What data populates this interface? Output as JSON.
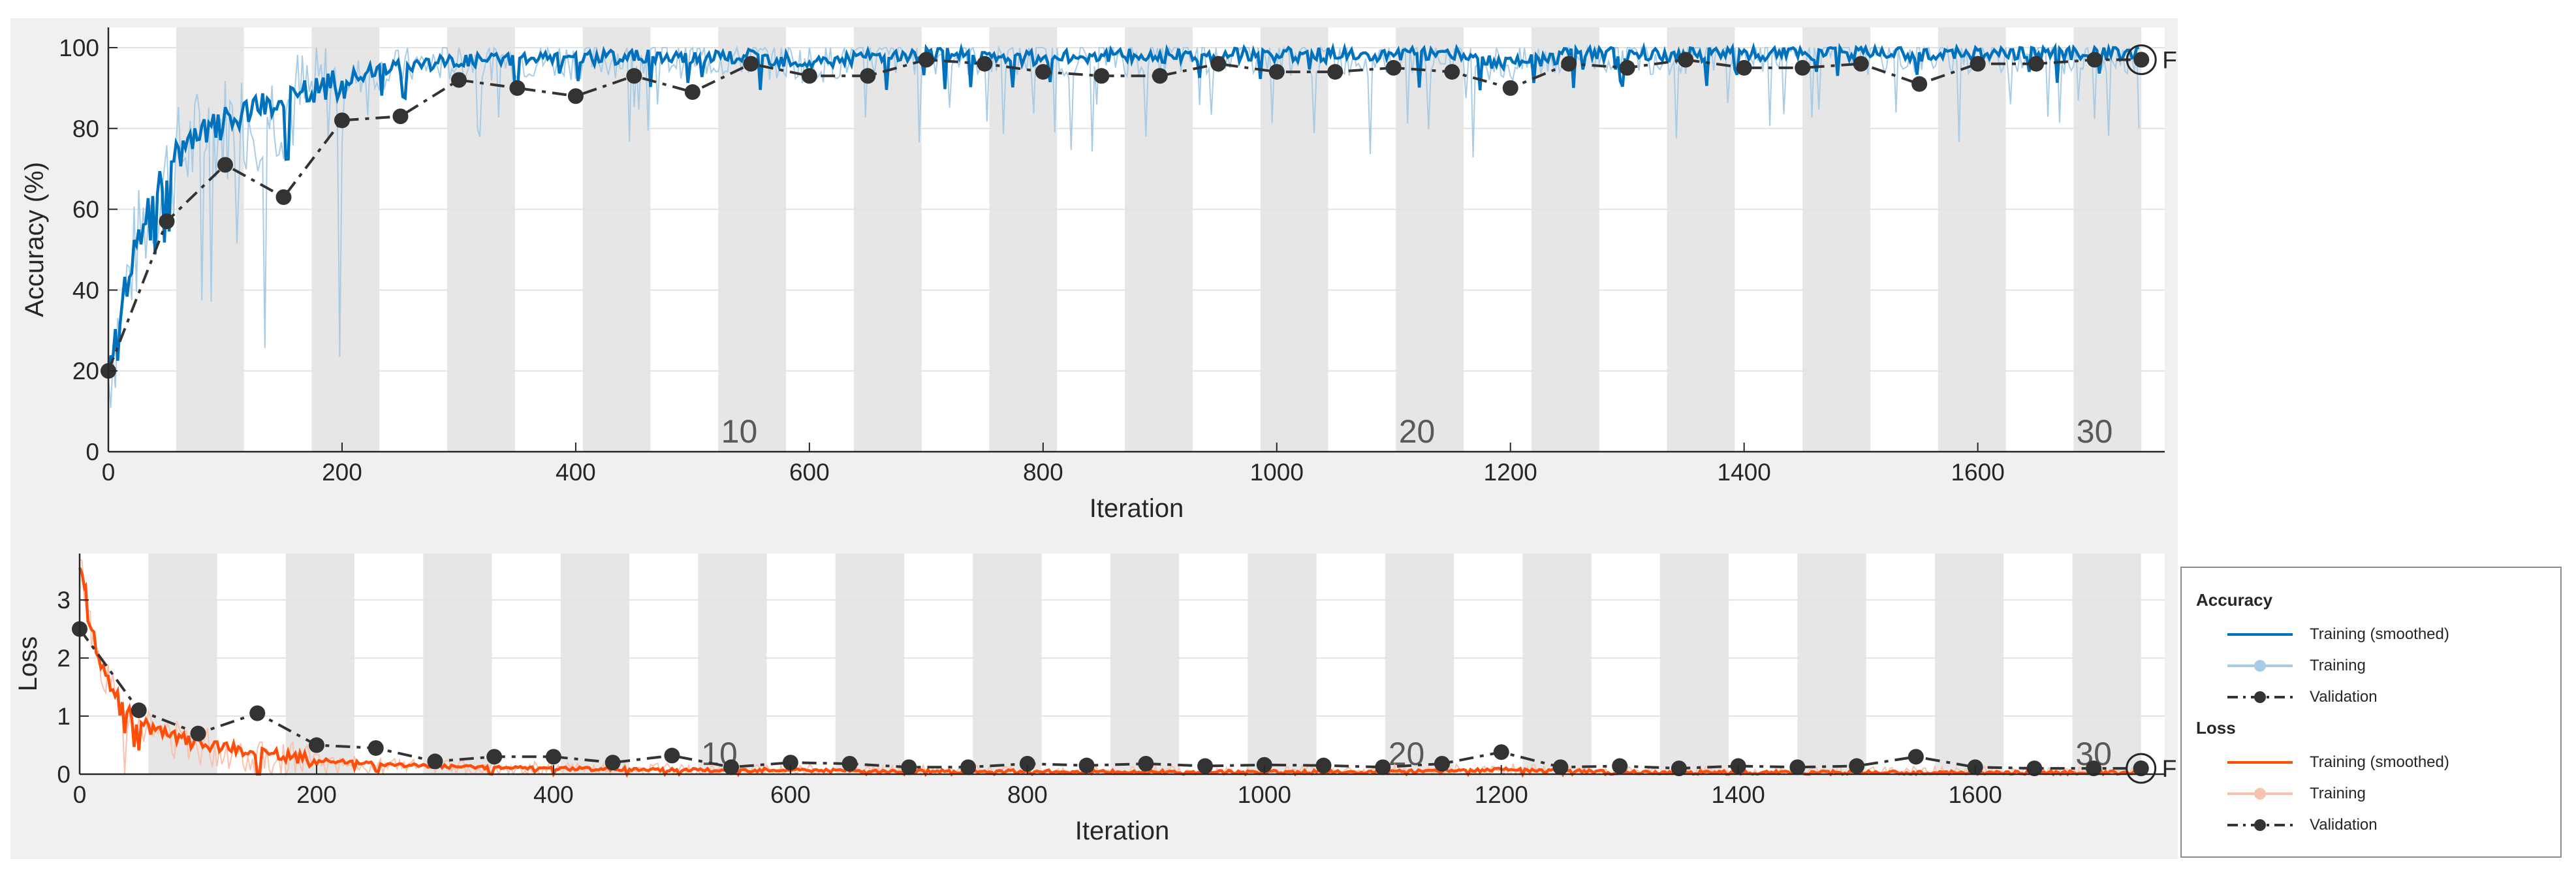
{
  "colors": {
    "accuracy_smoothed": "#0072bd",
    "accuracy_raw": "#a8cce6",
    "loss_smoothed": "#ff4d0a",
    "loss_raw": "#f7c3ae",
    "validation": "#333333",
    "epoch_band": "#e6e6e6",
    "plot_bg": "#ffffff",
    "grid": "#e3e3e3"
  },
  "chart_data": [
    {
      "type": "line",
      "name": "accuracy-plot",
      "xlabel": "Iteration",
      "ylabel": "Accuracy (%)",
      "xlim": [
        0,
        1760
      ],
      "ylim": [
        0,
        105
      ],
      "x_ticks": [
        0,
        200,
        400,
        600,
        800,
        1000,
        1200,
        1400,
        1600
      ],
      "y_ticks": [
        0,
        20,
        40,
        60,
        80,
        100
      ],
      "grid": true,
      "epoch_labels": [
        {
          "epoch": "10",
          "x": 540
        },
        {
          "epoch": "20",
          "x": 1120
        },
        {
          "epoch": "30",
          "x": 1700
        }
      ],
      "final_marker": {
        "x": 1740,
        "y": 97,
        "label": "Fin"
      },
      "series": [
        {
          "name": "Training (smoothed)",
          "x": [
            0,
            10,
            20,
            30,
            40,
            50,
            60,
            80,
            100,
            120,
            140,
            160,
            180,
            200,
            220,
            240,
            260,
            280,
            300,
            350,
            400,
            450,
            500,
            550,
            600,
            650,
            700,
            750,
            800,
            850,
            900,
            950,
            1000,
            1050,
            1100,
            1150,
            1200,
            1250,
            1300,
            1350,
            1400,
            1450,
            1500,
            1550,
            1600,
            1650,
            1700,
            1740
          ],
          "values": [
            20,
            35,
            48,
            57,
            64,
            70,
            74,
            79,
            82,
            84,
            86,
            88,
            90,
            92,
            94,
            95,
            96,
            96.5,
            97,
            97.5,
            97.5,
            98,
            97.8,
            98,
            96.5,
            98,
            98.5,
            98,
            97.5,
            98.5,
            98,
            98.5,
            98.5,
            98.3,
            98.5,
            98.5,
            96,
            98.5,
            98.8,
            98.5,
            98.8,
            98.6,
            98.8,
            98.5,
            98.8,
            98.9,
            98.9,
            99
          ]
        },
        {
          "name": "Training",
          "x": [
            0,
            10,
            20,
            30,
            40,
            50,
            60,
            80,
            100,
            120,
            140,
            160,
            180,
            200,
            220,
            240,
            260,
            280,
            300,
            350,
            400,
            450,
            500,
            550,
            600,
            650,
            700,
            750,
            800,
            850,
            900,
            950,
            1000,
            1050,
            1100,
            1150,
            1200,
            1250,
            1300,
            1350,
            1400,
            1450,
            1500,
            1550,
            1600,
            1650,
            1700,
            1740
          ],
          "values": [
            20,
            35,
            48,
            57,
            64,
            70,
            74,
            79,
            82,
            84,
            86,
            88,
            90,
            92,
            94,
            95,
            96,
            96.5,
            97,
            97.5,
            97.5,
            98,
            97.8,
            98,
            96.5,
            98,
            98.5,
            98,
            97.5,
            98.5,
            98,
            98.5,
            98.5,
            98.3,
            98.5,
            98.5,
            96,
            98.5,
            98.8,
            98.5,
            98.8,
            98.6,
            98.8,
            98.5,
            98.8,
            98.9,
            98.9,
            99
          ]
        },
        {
          "name": "Validation",
          "x": [
            0,
            50,
            100,
            150,
            200,
            250,
            300,
            350,
            400,
            450,
            500,
            550,
            600,
            650,
            700,
            750,
            800,
            850,
            900,
            950,
            1000,
            1050,
            1100,
            1150,
            1200,
            1250,
            1300,
            1350,
            1400,
            1450,
            1500,
            1550,
            1600,
            1650,
            1700,
            1740
          ],
          "values": [
            20,
            57,
            71,
            63,
            82,
            83,
            92,
            90,
            88,
            93,
            89,
            96,
            93,
            93,
            97,
            96,
            94,
            93,
            93,
            96,
            94,
            94,
            95,
            94,
            90,
            96,
            95,
            97,
            95,
            95,
            96,
            91,
            96,
            96,
            97,
            97
          ]
        }
      ]
    },
    {
      "type": "line",
      "name": "loss-plot",
      "xlabel": "Iteration",
      "ylabel": "Loss",
      "xlim": [
        0,
        1760
      ],
      "ylim": [
        0,
        3.8
      ],
      "x_ticks": [
        0,
        200,
        400,
        600,
        800,
        1000,
        1200,
        1400,
        1600
      ],
      "y_ticks": [
        0,
        1,
        2,
        3
      ],
      "grid": true,
      "epoch_labels": [
        {
          "epoch": "10",
          "x": 540
        },
        {
          "epoch": "20",
          "x": 1120
        },
        {
          "epoch": "30",
          "x": 1700
        }
      ],
      "final_marker": {
        "x": 1740,
        "y": 0.1,
        "label": "Fin"
      },
      "series": [
        {
          "name": "Training (smoothed)",
          "x": [
            0,
            5,
            10,
            20,
            30,
            40,
            50,
            60,
            80,
            100,
            120,
            140,
            160,
            180,
            200,
            250,
            300,
            350,
            400,
            450,
            500,
            550,
            600,
            650,
            700,
            750,
            800,
            900,
            1000,
            1100,
            1200,
            1300,
            1400,
            1500,
            1600,
            1700,
            1740
          ],
          "values": [
            3.6,
            3.2,
            2.5,
            1.8,
            1.4,
            1.1,
            0.9,
            0.8,
            0.65,
            0.55,
            0.45,
            0.4,
            0.35,
            0.3,
            0.25,
            0.18,
            0.14,
            0.12,
            0.1,
            0.09,
            0.08,
            0.07,
            0.08,
            0.06,
            0.05,
            0.05,
            0.05,
            0.04,
            0.04,
            0.04,
            0.08,
            0.04,
            0.03,
            0.03,
            0.03,
            0.03,
            0.03
          ]
        },
        {
          "name": "Training",
          "x": [
            0,
            5,
            10,
            20,
            30,
            40,
            50,
            60,
            80,
            100,
            120,
            140,
            160,
            180,
            200,
            250,
            300,
            350,
            400,
            450,
            500,
            550,
            600,
            650,
            700,
            750,
            800,
            900,
            1000,
            1100,
            1200,
            1300,
            1400,
            1500,
            1600,
            1700,
            1740
          ],
          "values": [
            3.6,
            3.2,
            2.5,
            1.8,
            1.4,
            1.1,
            0.9,
            0.8,
            0.65,
            0.55,
            0.45,
            0.4,
            0.35,
            0.3,
            0.25,
            0.18,
            0.14,
            0.12,
            0.1,
            0.09,
            0.08,
            0.07,
            0.08,
            0.06,
            0.05,
            0.05,
            0.05,
            0.04,
            0.04,
            0.04,
            0.08,
            0.04,
            0.03,
            0.03,
            0.03,
            0.03,
            0.03
          ]
        },
        {
          "name": "Validation",
          "x": [
            0,
            50,
            100,
            150,
            200,
            250,
            300,
            350,
            400,
            450,
            500,
            550,
            600,
            650,
            700,
            750,
            800,
            850,
            900,
            950,
            1000,
            1050,
            1100,
            1150,
            1200,
            1250,
            1300,
            1350,
            1400,
            1450,
            1500,
            1550,
            1600,
            1650,
            1700,
            1740
          ],
          "values": [
            2.5,
            1.1,
            0.7,
            1.05,
            0.5,
            0.45,
            0.22,
            0.3,
            0.3,
            0.2,
            0.32,
            0.12,
            0.2,
            0.18,
            0.12,
            0.12,
            0.18,
            0.15,
            0.18,
            0.14,
            0.16,
            0.15,
            0.12,
            0.18,
            0.38,
            0.12,
            0.14,
            0.1,
            0.14,
            0.12,
            0.14,
            0.3,
            0.12,
            0.1,
            0.1,
            0.1
          ]
        }
      ]
    }
  ],
  "legend": {
    "accuracy_title": "Accuracy",
    "loss_title": "Loss",
    "accuracy_entries": [
      "Training (smoothed)",
      "Training",
      "Validation"
    ],
    "loss_entries": [
      "Training (smoothed)",
      "Training",
      "Validation"
    ]
  }
}
